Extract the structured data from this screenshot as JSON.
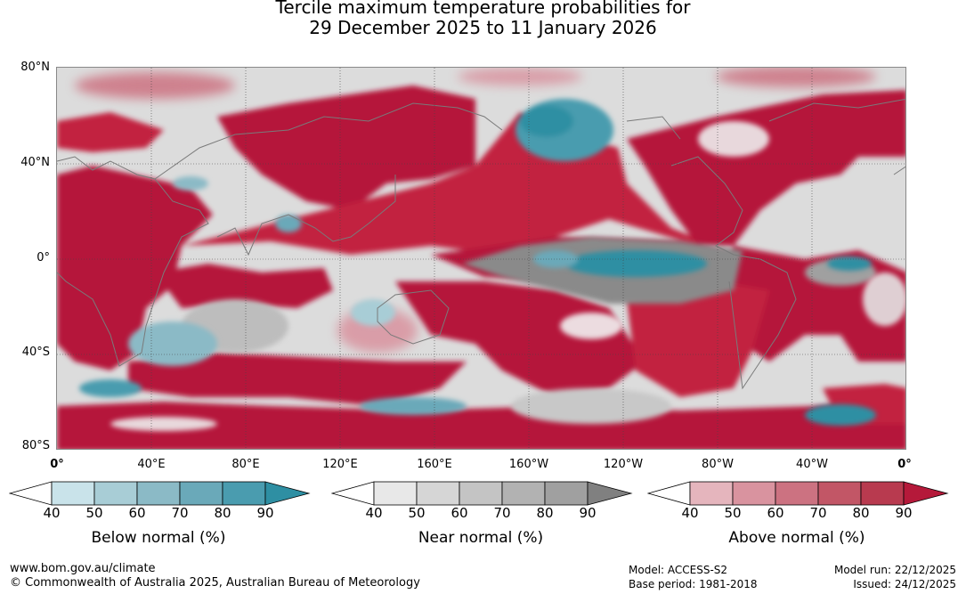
{
  "title": {
    "line1": "Tercile maximum temperature probabilities for",
    "line2": "29 December 2025 to 11 January 2026"
  },
  "map": {
    "lat_labels": [
      "80°N",
      "40°N",
      "0°",
      "40°S",
      "80°S"
    ],
    "lon_labels": [
      "0°",
      "40°E",
      "80°E",
      "120°E",
      "160°E",
      "160°W",
      "120°W",
      "80°W",
      "40°W",
      "0°"
    ],
    "colors": {
      "ocean_grey": "#d9d9d9",
      "above_strong": "#b5193a",
      "below_strong": "#2e8fa3",
      "near_strong": "#808080"
    }
  },
  "colorbars": [
    {
      "label": "Below normal (%)",
      "ticks": [
        "40",
        "50",
        "60",
        "70",
        "80",
        "90"
      ],
      "colors": [
        "#ffffff",
        "#c9e3ea",
        "#a8cdd6",
        "#8bbac6",
        "#6aa9b9",
        "#4a9caf",
        "#2e8fa3"
      ]
    },
    {
      "label": "Near normal (%)",
      "ticks": [
        "40",
        "50",
        "60",
        "70",
        "80",
        "90"
      ],
      "colors": [
        "#ffffff",
        "#e8e8e8",
        "#d6d6d6",
        "#c4c4c4",
        "#b2b2b2",
        "#a0a0a0",
        "#808080"
      ]
    },
    {
      "label": "Above normal (%)",
      "ticks": [
        "40",
        "50",
        "60",
        "70",
        "80",
        "90"
      ],
      "colors": [
        "#ffffff",
        "#e5b5bd",
        "#d9939f",
        "#cc7281",
        "#c25666",
        "#b83a4f",
        "#b5193a"
      ]
    }
  ],
  "footer": {
    "url": "www.bom.gov.au/climate",
    "copyright": "© Commonwealth of Australia 2025, Australian Bureau of Meteorology",
    "model": "Model: ACCESS-S2",
    "base_period": "Base period: 1981-2018",
    "model_run": "Model run: 22/12/2025",
    "issued": "Issued: 24/12/2025"
  }
}
